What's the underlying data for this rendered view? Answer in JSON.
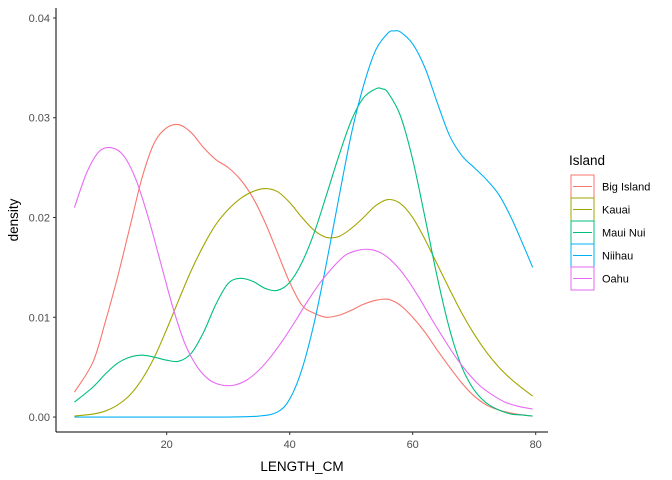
{
  "chart_data": {
    "type": "line",
    "subtype": "density",
    "title": "",
    "xlabel": "LENGTH_CM",
    "ylabel": "density",
    "xlim": [
      2,
      82
    ],
    "ylim": [
      -0.0015,
      0.041
    ],
    "x_ticks": [
      20,
      40,
      60,
      80
    ],
    "x_tick_labels": [
      "20",
      "40",
      "60",
      "80"
    ],
    "y_ticks": [
      0.0,
      0.01,
      0.02,
      0.03,
      0.04
    ],
    "y_tick_labels": [
      "0.00",
      "0.01",
      "0.02",
      "0.03",
      "0.04"
    ],
    "grid": false,
    "legend": {
      "title": "Island",
      "position": "right"
    },
    "series": [
      {
        "name": "Big Island",
        "color": "#F8766D",
        "x": [
          5,
          8,
          10,
          12,
          14,
          16,
          18,
          20,
          22,
          24,
          26,
          28,
          30,
          32,
          34,
          36,
          38,
          40,
          42,
          44,
          46,
          48,
          50,
          52,
          54,
          56,
          58,
          60,
          62,
          64,
          66,
          68,
          70,
          72,
          74,
          76,
          78,
          79.5
        ],
        "y": [
          0.0025,
          0.0055,
          0.0095,
          0.014,
          0.019,
          0.024,
          0.0275,
          0.029,
          0.0293,
          0.0285,
          0.027,
          0.0258,
          0.025,
          0.0238,
          0.022,
          0.0195,
          0.0165,
          0.0135,
          0.0112,
          0.0104,
          0.01,
          0.0102,
          0.0107,
          0.0113,
          0.0117,
          0.0118,
          0.0112,
          0.01,
          0.0085,
          0.0067,
          0.005,
          0.0034,
          0.0021,
          0.0012,
          0.0007,
          0.0004,
          0.0002,
          0.0001
        ]
      },
      {
        "name": "Kauai",
        "color": "#A3A500",
        "x": [
          5,
          8,
          10,
          12,
          14,
          16,
          18,
          20,
          22,
          24,
          26,
          28,
          30,
          32,
          34,
          36,
          38,
          40,
          42,
          44,
          46,
          48,
          50,
          52,
          54,
          56,
          58,
          60,
          62,
          64,
          66,
          68,
          70,
          72,
          74,
          76,
          78,
          79.5
        ],
        "y": [
          0.0001,
          0.0003,
          0.0006,
          0.0012,
          0.0022,
          0.0038,
          0.006,
          0.0088,
          0.0118,
          0.0147,
          0.0172,
          0.0193,
          0.0208,
          0.0219,
          0.0226,
          0.0229,
          0.0226,
          0.0215,
          0.02,
          0.0187,
          0.018,
          0.0181,
          0.0189,
          0.02,
          0.0212,
          0.0218,
          0.0214,
          0.02,
          0.0178,
          0.0153,
          0.0128,
          0.0104,
          0.0083,
          0.0065,
          0.005,
          0.0038,
          0.0028,
          0.0021
        ]
      },
      {
        "name": "Maui Nui",
        "color": "#00BF7D",
        "x": [
          5,
          8,
          10,
          12,
          14,
          16,
          18,
          20,
          22,
          24,
          26,
          28,
          30,
          32,
          34,
          36,
          38,
          40,
          42,
          44,
          46,
          48,
          50,
          52,
          54,
          55,
          56,
          58,
          60,
          62,
          64,
          66,
          68,
          70,
          72,
          74,
          76,
          78,
          79.5
        ],
        "y": [
          0.0015,
          0.003,
          0.0043,
          0.0054,
          0.006,
          0.0062,
          0.006,
          0.0057,
          0.0056,
          0.0064,
          0.0085,
          0.0113,
          0.0134,
          0.0139,
          0.0136,
          0.0129,
          0.0127,
          0.0135,
          0.0155,
          0.0185,
          0.0223,
          0.0262,
          0.0297,
          0.032,
          0.0329,
          0.0329,
          0.0325,
          0.0302,
          0.0258,
          0.02,
          0.014,
          0.0088,
          0.005,
          0.0027,
          0.0014,
          0.0007,
          0.0003,
          0.0002,
          0.0001
        ]
      },
      {
        "name": "Niihau",
        "color": "#00B0F6",
        "x": [
          5,
          10,
          15,
          20,
          25,
          30,
          35,
          38,
          40,
          42,
          44,
          46,
          48,
          50,
          52,
          54,
          56,
          57,
          58,
          60,
          62,
          64,
          66,
          68,
          70,
          72,
          74,
          76,
          78,
          79.5
        ],
        "y": [
          0.0,
          0.0,
          0.0,
          0.0,
          0.0,
          0.0,
          0.0001,
          0.0005,
          0.0018,
          0.0048,
          0.0095,
          0.0155,
          0.022,
          0.0283,
          0.0332,
          0.0368,
          0.0385,
          0.0387,
          0.0386,
          0.0374,
          0.035,
          0.0315,
          0.0282,
          0.0262,
          0.025,
          0.0238,
          0.0223,
          0.02,
          0.0172,
          0.015
        ]
      },
      {
        "name": "Oahu",
        "color": "#E76BF3",
        "x": [
          5,
          7,
          9,
          11,
          13,
          15,
          17,
          19,
          21,
          23,
          25,
          27,
          29,
          31,
          33,
          35,
          37,
          39,
          41,
          43,
          45,
          47,
          49,
          51,
          53,
          55,
          57,
          59,
          61,
          63,
          65,
          67,
          69,
          71,
          73,
          75,
          77,
          79.5
        ],
        "y": [
          0.021,
          0.0245,
          0.0266,
          0.027,
          0.0262,
          0.0238,
          0.02,
          0.0155,
          0.011,
          0.0073,
          0.005,
          0.0037,
          0.0032,
          0.0032,
          0.0037,
          0.0047,
          0.0061,
          0.0078,
          0.0097,
          0.0117,
          0.0135,
          0.015,
          0.0162,
          0.0167,
          0.0168,
          0.0164,
          0.0154,
          0.0139,
          0.012,
          0.0099,
          0.0079,
          0.006,
          0.0044,
          0.0031,
          0.0022,
          0.0015,
          0.0011,
          0.0008
        ]
      }
    ]
  }
}
